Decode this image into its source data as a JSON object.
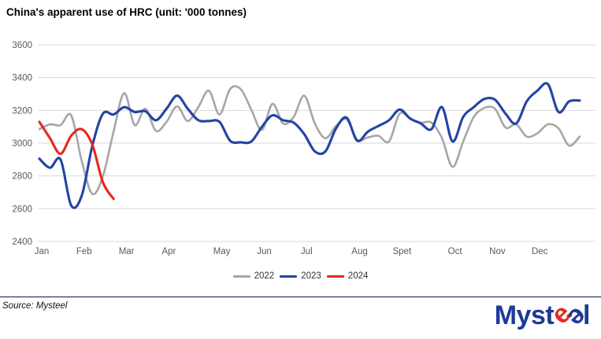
{
  "header": {
    "title": "China's apparent use of HRC (unit: '000 tonnes)"
  },
  "chart_data": {
    "type": "line",
    "title": "China's apparent use of HRC (unit: '000 tonnes)",
    "unit": "'000 tonnes",
    "x_mode": "weekly",
    "weeks_per_year": 52,
    "month_labels": [
      "Jan",
      "Feb",
      "Mar",
      "Apr",
      "May",
      "Jun",
      "Jul",
      "Aug",
      "Spet",
      "Oct",
      "Nov",
      "Dec"
    ],
    "month_start_weeks": [
      1,
      5,
      9,
      13,
      18,
      22,
      26,
      31,
      35,
      40,
      44,
      48
    ],
    "y_ticks": [
      2400,
      2600,
      2800,
      3000,
      3200,
      3400,
      3600
    ],
    "ylim": [
      2400,
      3600
    ],
    "grid": "horizontal",
    "gridline_color": "#d9d9d9",
    "tick_label_color": "#595959",
    "legend_position": "bottom",
    "series": [
      {
        "name": "2022",
        "color": "#a6a6a6",
        "values": [
          3085,
          3115,
          3110,
          3170,
          2890,
          2690,
          2800,
          3070,
          3305,
          3110,
          3210,
          3075,
          3130,
          3225,
          3135,
          3220,
          3320,
          3175,
          3330,
          3330,
          3205,
          3080,
          3240,
          3120,
          3160,
          3290,
          3120,
          3030,
          3105,
          3145,
          3020,
          3035,
          3045,
          3010,
          3180,
          3150,
          3125,
          3125,
          3030,
          2855,
          3010,
          3160,
          3215,
          3210,
          3095,
          3115,
          3040,
          3060,
          3115,
          3090,
          2985,
          3040
        ]
      },
      {
        "name": "2023",
        "color": "#2443a4",
        "values": [
          2905,
          2850,
          2900,
          2620,
          2680,
          2985,
          3180,
          3175,
          3220,
          3190,
          3195,
          3140,
          3210,
          3290,
          3210,
          3140,
          3135,
          3130,
          3015,
          3005,
          3010,
          3100,
          3170,
          3140,
          3125,
          3055,
          2950,
          2950,
          3090,
          3155,
          3015,
          3070,
          3105,
          3140,
          3205,
          3150,
          3120,
          3085,
          3220,
          3010,
          3160,
          3220,
          3270,
          3265,
          3180,
          3120,
          3255,
          3320,
          3360,
          3190,
          3255,
          3260
        ]
      },
      {
        "name": "2024",
        "color": "#e8271f",
        "values": [
          3130,
          3030,
          2935,
          3045,
          3085,
          2990,
          2760,
          2660
        ]
      }
    ]
  },
  "footer": {
    "source": "Source: Mysteel",
    "logo": {
      "part1": "Myst",
      "e_red": "e",
      "e_blue": "e",
      "part2": "l"
    }
  }
}
